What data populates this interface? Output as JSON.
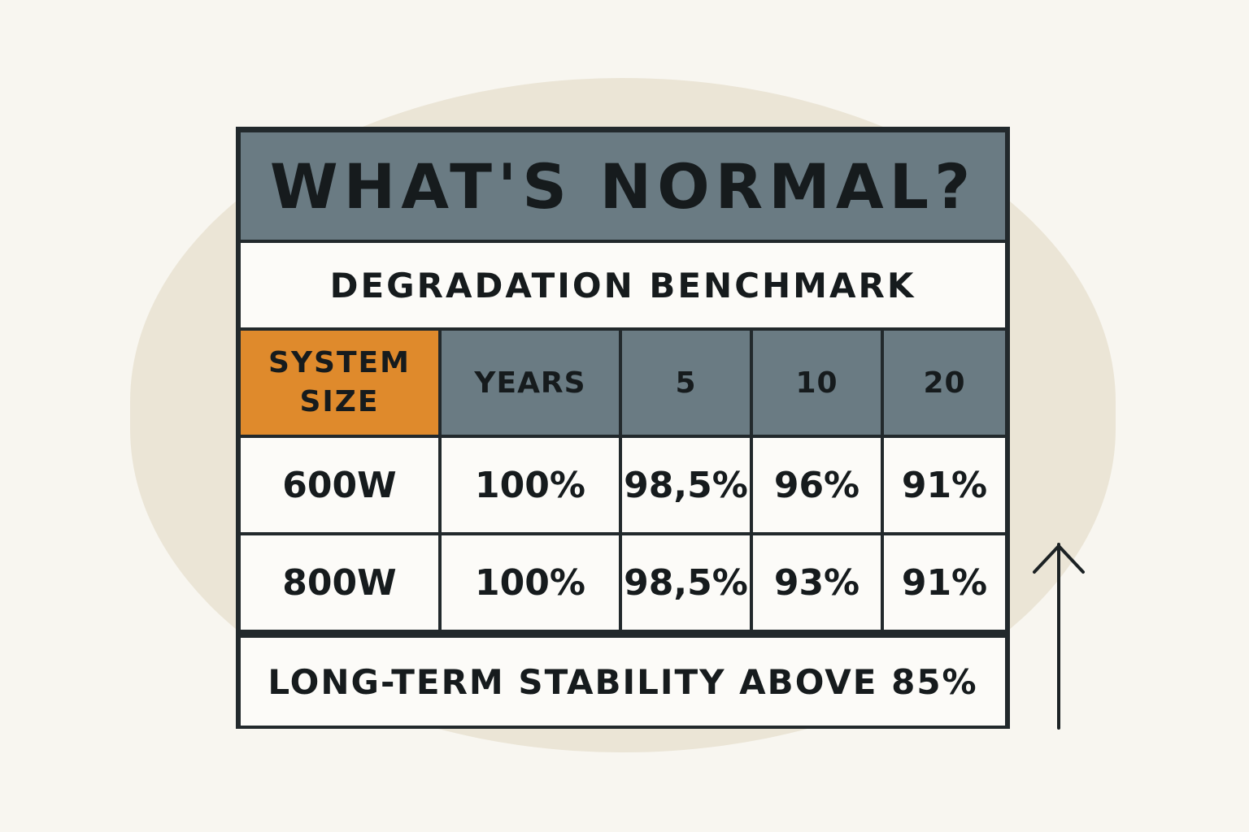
{
  "title": "WHAT'S NORMAL?",
  "subtitle": "DEGRADATION BENCHMARK",
  "header": {
    "system_size": "SYSTEM SIZE",
    "years": "YEARS",
    "columns": [
      "5",
      "10",
      "20"
    ]
  },
  "rows": [
    {
      "size": "600W",
      "years": "100%",
      "values": [
        "98,5%",
        "96%",
        "91%"
      ]
    },
    {
      "size": "800W",
      "years": "100%",
      "values": [
        "98,5%",
        "93%",
        "91%"
      ]
    }
  ],
  "footer": "LONG-TERM STABILITY ABOVE 85%",
  "icons": {
    "arrow": "arrow-up-icon"
  },
  "colors": {
    "header_bg": "#6a7b83",
    "accent": "#df8a2c",
    "cell_bg": "#fcfbf8",
    "border": "#22292c",
    "background_shape": "#ebe5d6"
  }
}
